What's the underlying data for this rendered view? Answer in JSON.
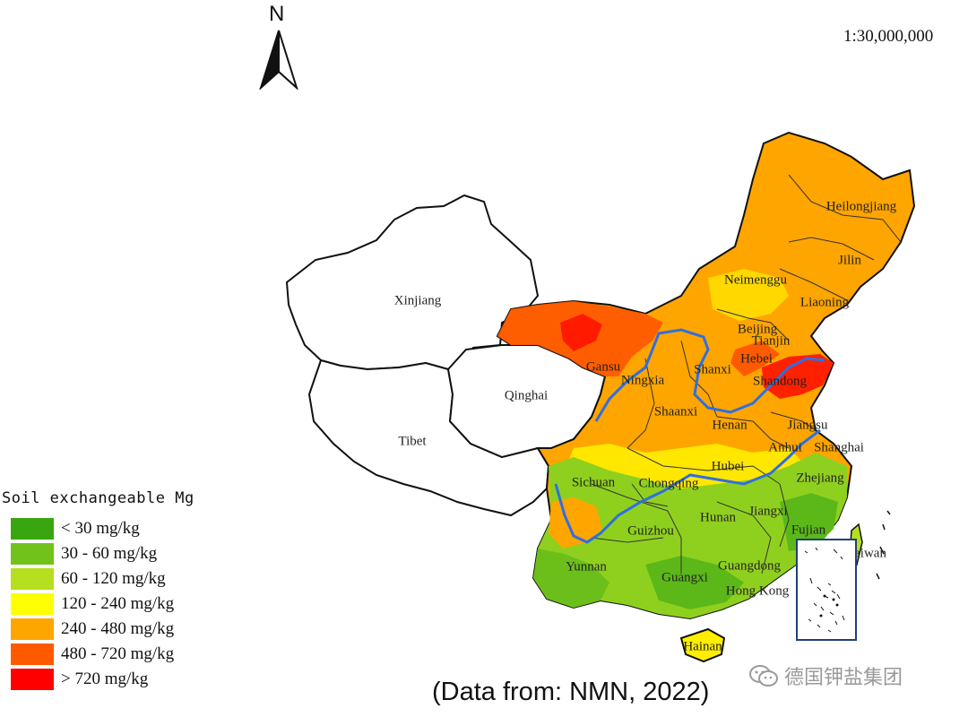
{
  "compass": {
    "letter": "N",
    "icon": "north-arrow-icon"
  },
  "scale": "1:30,000,000",
  "legend": {
    "title": "Soil exchangeable Mg",
    "classes": [
      {
        "label": "< 30 mg/kg",
        "color": "#3aa60f"
      },
      {
        "label": "30 - 60 mg/kg",
        "color": "#72c21c"
      },
      {
        "label": "60 - 120 mg/kg",
        "color": "#b4e01f"
      },
      {
        "label": "120 - 240 mg/kg",
        "color": "#ffff00"
      },
      {
        "label": "240 - 480 mg/kg",
        "color": "#ffa500"
      },
      {
        "label": "480 - 720 mg/kg",
        "color": "#ff5a00"
      },
      {
        "label": "> 720 mg/kg",
        "color": "#ff0000"
      }
    ]
  },
  "regions": [
    "Xinjiang",
    "Tibet",
    "Qinghai",
    "Gansu",
    "Ningxia",
    "Neimenggu",
    "Heilongjiang",
    "Jilin",
    "Liaoning",
    "Beijing",
    "Tianjin",
    "Hebei",
    "Shanxi",
    "Shandong",
    "Shaanxi",
    "Henan",
    "Jiangsu",
    "Anhui",
    "Shanghai",
    "Hubei",
    "Sichuan",
    "Chongqing",
    "Zhejiang",
    "Jiangxi",
    "Hunan",
    "Guizhou",
    "Fujian",
    "Yunnan",
    "Guangxi",
    "Guangdong",
    "Hong Kong",
    "Hainan",
    "Taiwan"
  ],
  "source": "(Data from: NMN, 2022)",
  "watermark": {
    "text": "德国钾盐集团",
    "icon": "wechat-icon"
  }
}
